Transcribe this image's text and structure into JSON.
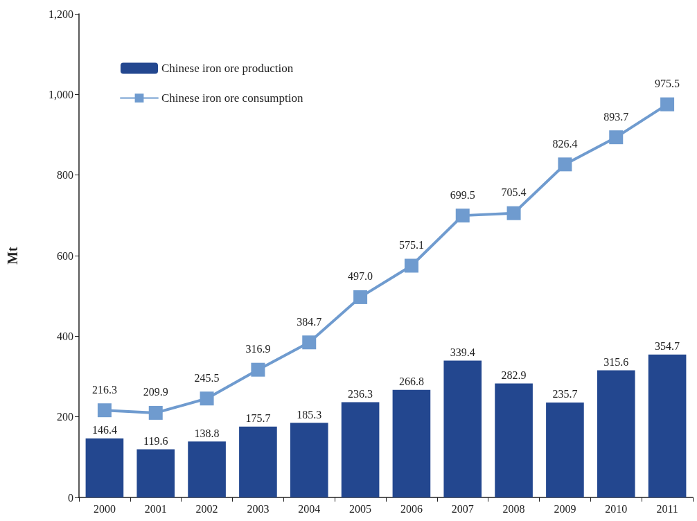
{
  "chart_data": {
    "type": "bar",
    "ylabel": "Mt",
    "categories": [
      "2000",
      "2001",
      "2002",
      "2003",
      "2004",
      "2005",
      "2006",
      "2007",
      "2008",
      "2009",
      "2010",
      "2011"
    ],
    "series": [
      {
        "name": "Chinese iron ore production",
        "color": "#23478f",
        "values": [
          146.4,
          119.6,
          138.8,
          175.7,
          185.3,
          236.3,
          266.8,
          339.4,
          282.9,
          235.7,
          315.6,
          354.7
        ],
        "value_labels": [
          "146.4",
          "119.6",
          "138.8",
          "175.7",
          "185.3",
          "236.3",
          "266.8",
          "339.4",
          "282.9",
          "235.7",
          "315.6",
          "354.7"
        ]
      },
      {
        "name": "Chinese iron ore consumption",
        "type": "line",
        "color": "#6f9bcf",
        "values": [
          216.3,
          209.9,
          245.5,
          316.9,
          384.7,
          497.0,
          575.1,
          699.5,
          705.4,
          826.4,
          893.7,
          975.5
        ],
        "value_labels": [
          "216.3",
          "209.9",
          "245.5",
          "316.9",
          "384.7",
          "497.0",
          "575.1",
          "699.5",
          "705.4",
          "826.4",
          "893.7",
          "975.5"
        ]
      }
    ],
    "ylim": [
      0,
      1200
    ],
    "yticks": [
      0,
      200,
      400,
      600,
      800,
      {
        "value": 1000,
        "label": "1,000"
      },
      {
        "value": 1200,
        "label": "1,200"
      }
    ],
    "grid": false,
    "legend": "top left",
    "marker": "square",
    "line_style": "solid"
  }
}
